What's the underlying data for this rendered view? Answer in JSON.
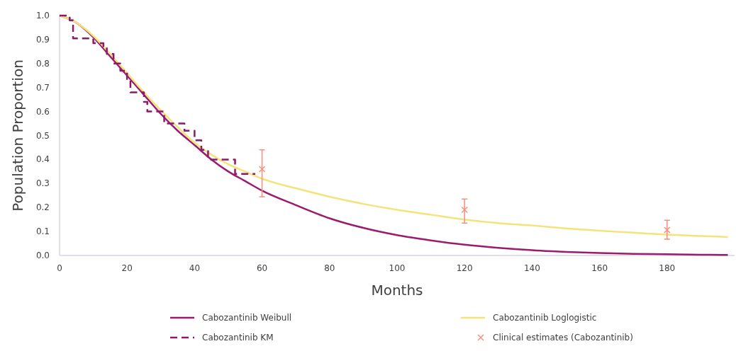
{
  "chart_data": {
    "type": "line",
    "xlabel": "Months",
    "ylabel": "Population Proportion",
    "xlim": [
      0,
      200
    ],
    "xticks": [
      0,
      20,
      40,
      60,
      80,
      100,
      120,
      140,
      160,
      180
    ],
    "ylim": [
      0,
      1
    ],
    "yticks": [
      {
        "value": 0,
        "label": "0.0"
      },
      0.1,
      0.2,
      0.3,
      0.4,
      0.5,
      0.6,
      0.7,
      0.8,
      0.9,
      {
        "value": 1,
        "label": "1.0"
      }
    ],
    "grid": false,
    "legend": "bottom",
    "series": [
      {
        "name": "Cabozantinib Weibull",
        "color": "#9b1b6e",
        "line_style": "solid",
        "x": [
          0,
          5,
          10,
          15,
          20,
          25,
          30,
          35,
          40,
          45,
          50,
          55,
          60,
          70,
          80,
          90,
          100,
          110,
          120,
          130,
          140,
          150,
          160,
          170,
          180,
          190,
          198
        ],
        "values": [
          1.0,
          0.97,
          0.91,
          0.83,
          0.75,
          0.67,
          0.59,
          0.52,
          0.46,
          0.4,
          0.35,
          0.31,
          0.27,
          0.21,
          0.155,
          0.115,
          0.085,
          0.063,
          0.045,
          0.032,
          0.022,
          0.015,
          0.01,
          0.007,
          0.005,
          0.003,
          0.002
        ]
      },
      {
        "name": "Cabozantinib Loglogistic",
        "color": "#f5e27a",
        "line_style": "solid",
        "x": [
          0,
          5,
          10,
          15,
          20,
          25,
          30,
          35,
          40,
          45,
          50,
          55,
          60,
          70,
          80,
          90,
          100,
          110,
          120,
          130,
          140,
          150,
          160,
          170,
          180,
          190,
          198
        ],
        "values": [
          1.0,
          0.97,
          0.915,
          0.84,
          0.76,
          0.68,
          0.605,
          0.535,
          0.47,
          0.42,
          0.38,
          0.35,
          0.32,
          0.28,
          0.245,
          0.215,
          0.19,
          0.17,
          0.15,
          0.135,
          0.125,
          0.113,
          0.103,
          0.095,
          0.087,
          0.081,
          0.077
        ]
      },
      {
        "name": "Cabozantinib KM",
        "type": "step",
        "color": "#8b1a6b",
        "line_style": "dashed",
        "x": [
          0,
          3,
          4,
          10,
          13,
          14,
          16,
          18,
          20,
          21,
          25,
          26,
          31,
          37,
          40,
          42,
          44,
          52,
          58
        ],
        "values": [
          1.0,
          0.98,
          0.905,
          0.885,
          0.87,
          0.84,
          0.8,
          0.77,
          0.73,
          0.68,
          0.64,
          0.6,
          0.55,
          0.52,
          0.48,
          0.44,
          0.4,
          0.34,
          0.34
        ]
      },
      {
        "name": "Clinical estimates (Cabozantinib)",
        "type": "scatter",
        "color": "#f4907c",
        "marker": "cross",
        "x": [
          60,
          120,
          180
        ],
        "values": [
          0.36,
          0.19,
          0.106
        ],
        "errors": [
          [
            0.245,
            0.44
          ],
          [
            0.135,
            0.235
          ],
          [
            0.068,
            0.147
          ]
        ]
      }
    ]
  }
}
